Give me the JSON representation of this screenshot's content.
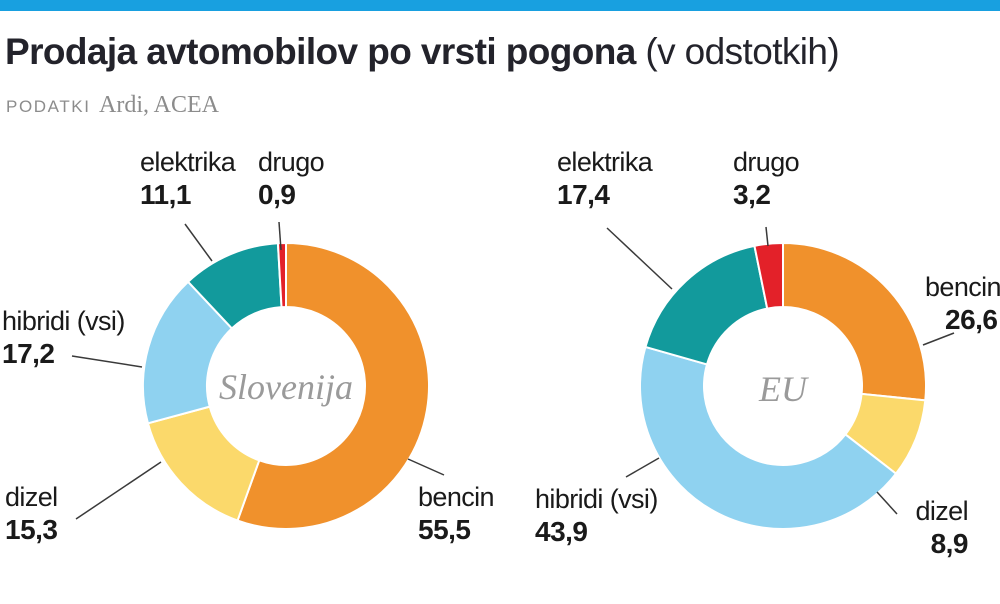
{
  "header": {
    "title_bold": "Prodaja avtomobilov po vrsti pogona",
    "title_light": " (v odstotkih)",
    "source_label": "PODATKI",
    "source_value": "Ardi, ACEA"
  },
  "colors": {
    "accent_bar": "#18A0E0",
    "bencin": "#F0912C",
    "dizel": "#FBD96B",
    "hibridi": "#8FD2F0",
    "elektrika": "#129A9C",
    "drugo": "#E32129",
    "title_text": "#23232B",
    "muted_text": "#8C8C8C",
    "center_label_text": "#9A9A9A",
    "callout_line": "#3A3A3A"
  },
  "chart_data": [
    {
      "type": "donut",
      "region": "Slovenija",
      "center_label": "Slovenija",
      "unit": "%",
      "categories": [
        "bencin",
        "dizel",
        "hibridi (vsi)",
        "elektrika",
        "drugo"
      ],
      "values": [
        55.5,
        15.3,
        17.2,
        11.1,
        0.9
      ],
      "display_values": [
        "55,5",
        "15,3",
        "17,2",
        "11,1",
        "0,9"
      ],
      "colors": [
        "#F0912C",
        "#FBD96B",
        "#8FD2F0",
        "#129A9C",
        "#E32129"
      ]
    },
    {
      "type": "donut",
      "region": "EU",
      "center_label": "EU",
      "unit": "%",
      "categories": [
        "bencin",
        "dizel",
        "hibridi (vsi)",
        "elektrika",
        "drugo"
      ],
      "values": [
        26.6,
        8.9,
        43.9,
        17.4,
        3.2
      ],
      "display_values": [
        "26,6",
        "8,9",
        "43,9",
        "17,4",
        "3,2"
      ],
      "colors": [
        "#F0912C",
        "#FBD96B",
        "#8FD2F0",
        "#129A9C",
        "#E32129"
      ]
    }
  ]
}
